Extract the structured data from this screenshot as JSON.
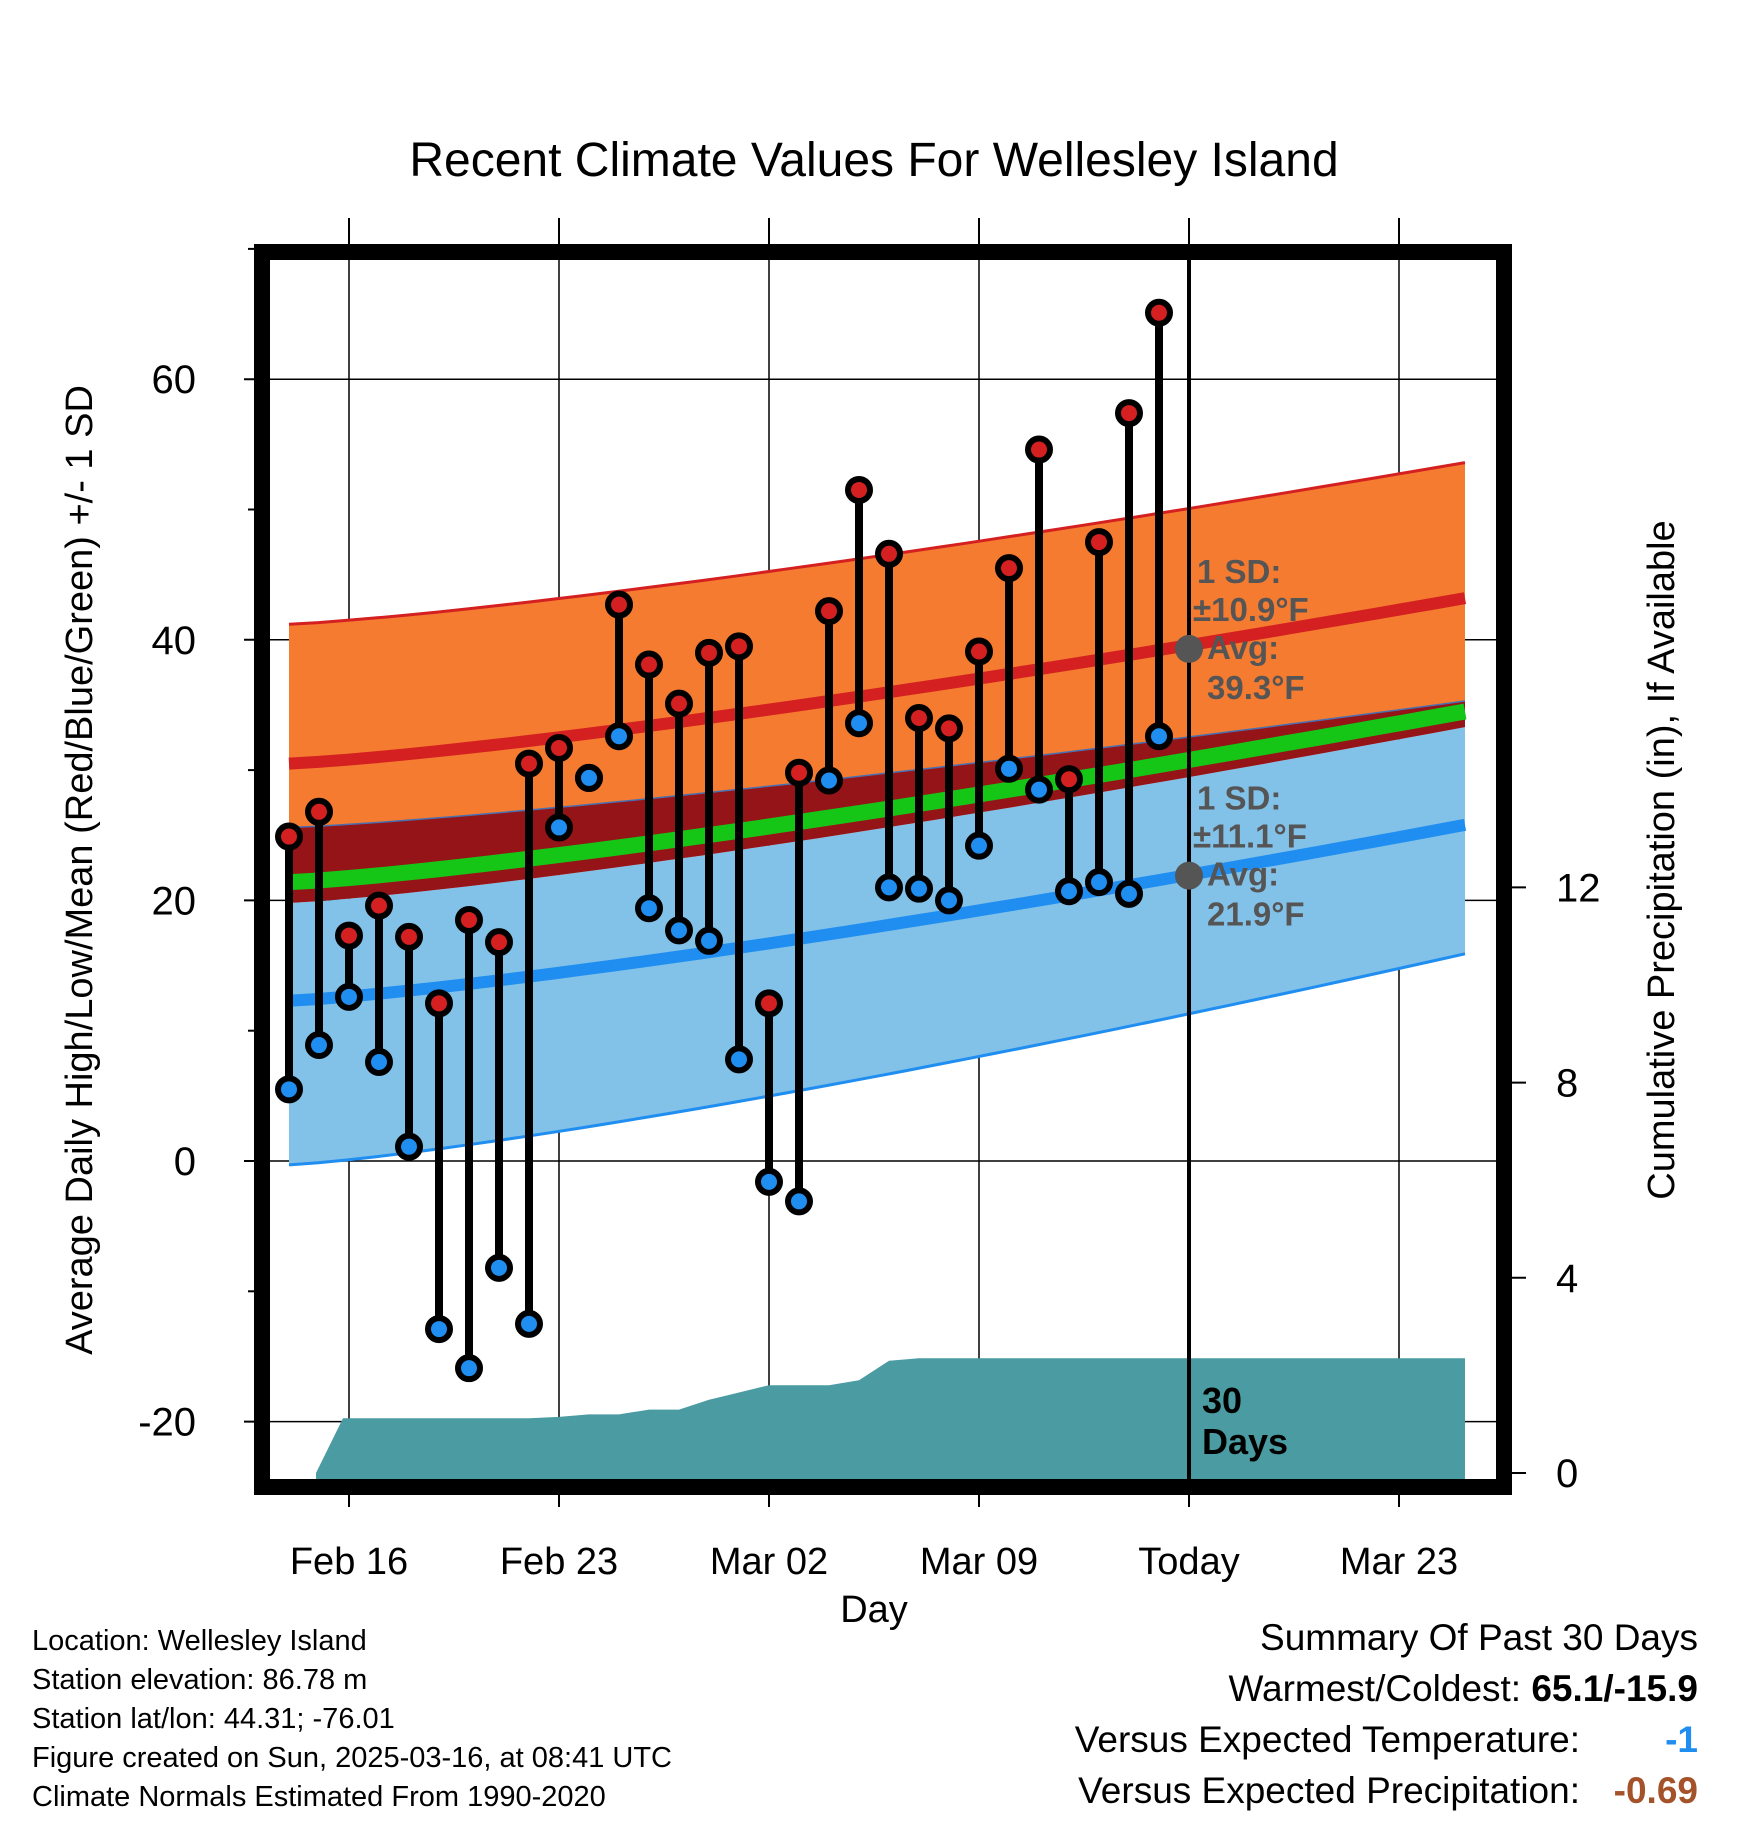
{
  "chart_data": {
    "type": "line",
    "title": "Recent Climate Values For Wellesley Island",
    "xlabel": "Day",
    "ylabel": "Average Daily High/Low/Mean (Red/Blue/Green) +/- 1 SD",
    "y2label": "Cumulative Precipitation (in), If Available",
    "ylim": [
      -23,
      70
    ],
    "y2lim": [
      0,
      24
    ],
    "yticks": [
      "-20",
      "0",
      "20",
      "40",
      "60"
    ],
    "y2ticks": [
      "0",
      "4",
      "8",
      "12"
    ],
    "x_ticks": [
      {
        "day": 0,
        "label": "Feb 16"
      },
      {
        "day": 7,
        "label": "Feb 23"
      },
      {
        "day": 14,
        "label": "Mar 02"
      },
      {
        "day": 21,
        "label": "Mar 09"
      },
      {
        "day": 28,
        "label": "Today"
      },
      {
        "day": 35,
        "label": "Mar 23"
      }
    ],
    "xlim": [
      -3.2,
      37.8
    ],
    "today_day": 28,
    "days": [
      -2,
      -1,
      0,
      1,
      2,
      3,
      4,
      5,
      6,
      7,
      8,
      9,
      10,
      11,
      12,
      13,
      14,
      15,
      16,
      17,
      18,
      19,
      20,
      21,
      22,
      23,
      24,
      25,
      26,
      27
    ],
    "highs": [
      24.9,
      26.8,
      17.3,
      19.6,
      17.2,
      12.1,
      18.5,
      16.8,
      30.5,
      31.7,
      29.4,
      42.7,
      38.1,
      35.1,
      39.0,
      39.5,
      12.1,
      29.8,
      42.2,
      51.5,
      46.6,
      34.0,
      33.2,
      39.1,
      45.5,
      54.6,
      29.3,
      47.5,
      57.4,
      65.1
    ],
    "lows": [
      5.5,
      8.9,
      12.6,
      7.6,
      1.1,
      -12.9,
      -15.9,
      -8.2,
      -12.5,
      25.6,
      29.4,
      32.6,
      19.4,
      17.7,
      16.9,
      7.8,
      -1.6,
      -3.1,
      29.2,
      33.6,
      21.0,
      20.9,
      20.0,
      24.2,
      30.1,
      28.5,
      20.7,
      21.4,
      20.5,
      32.6
    ],
    "series": [
      {
        "name": "Average High",
        "color": "#d42020",
        "x": [
          -2,
          37.2
        ],
        "values": [
          30.5,
          43.2
        ]
      },
      {
        "name": "Average Low",
        "color": "#1f8ef0",
        "x": [
          -2,
          37.2
        ],
        "values": [
          12.3,
          25.8
        ]
      },
      {
        "name": "Average Mean",
        "color": "#16c616",
        "x": [
          -2,
          37.2
        ],
        "values": [
          21.4,
          34.5
        ]
      }
    ],
    "high_band": {
      "upper": [
        41.2,
        53.6
      ],
      "lower": [
        25.6,
        35.3
      ],
      "color": "#f47b30",
      "edge": "#d42020"
    },
    "low_band": {
      "upper": [
        19.8,
        33.3
      ],
      "lower": [
        -0.3,
        15.9
      ],
      "color": "#82c1e8",
      "edge": "#1f8ef0"
    },
    "overlap_color": "#941418",
    "annotations": {
      "high": {
        "sd_label": "1 SD:",
        "sd_value": "±10.9°F",
        "avg_label": "Avg:",
        "avg_value": "39.3°F",
        "y": 39.3
      },
      "low": {
        "sd_label": "1 SD:",
        "sd_value": "±11.1°F",
        "avg_label": "Avg:",
        "avg_value": "21.9°F",
        "y": 21.9
      },
      "precip": {
        "line1": "30",
        "line2": "Days"
      }
    },
    "precipitation": {
      "color": "#4a9ba2",
      "x": [
        -1.1,
        -0.2,
        1,
        2,
        3,
        4,
        5,
        6,
        7,
        8,
        9,
        10,
        11,
        12,
        13,
        14,
        15,
        16,
        17,
        18,
        19,
        20,
        21,
        22,
        23,
        24,
        25,
        26,
        27,
        28,
        37.2
      ],
      "values": [
        0,
        1.12,
        1.12,
        1.12,
        1.12,
        1.12,
        1.12,
        1.12,
        1.15,
        1.2,
        1.2,
        1.3,
        1.3,
        1.5,
        1.65,
        1.8,
        1.8,
        1.8,
        1.9,
        2.3,
        2.35,
        2.35,
        2.35,
        2.35,
        2.35,
        2.35,
        2.35,
        2.35,
        2.35,
        2.35,
        2.35
      ]
    }
  },
  "footer": {
    "location": "Location: Wellesley Island",
    "elevation": "Station elevation: 86.78 m",
    "latlon": "Station lat/lon: 44.31; -76.01",
    "created": "Figure created on Sun, 2025-03-16, at 08:41 UTC",
    "normals": "Climate Normals Estimated From 1990-2020"
  },
  "summary": {
    "title": "Summary Of Past 30 Days",
    "warmest_label": "Warmest/Coldest: ",
    "warmest_value": "65.1/-15.9",
    "temp_label": "Versus Expected Temperature:",
    "temp_value": "-1",
    "temp_color": "#1f8ef0",
    "precip_label": "Versus Expected Precipitation:",
    "precip_value": "-0.69",
    "precip_color": "#a4522a"
  }
}
